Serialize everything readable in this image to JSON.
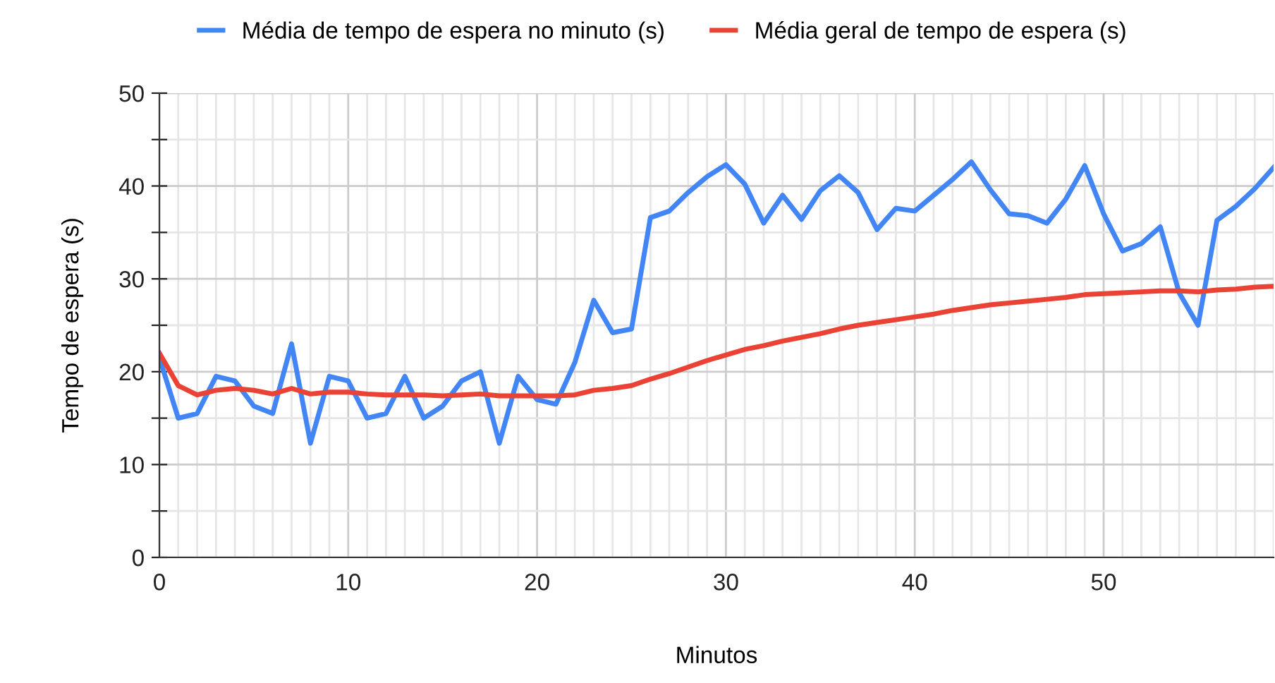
{
  "chart_data": {
    "type": "line",
    "xlabel": "Minutos",
    "ylabel": "Tempo de espera (s)",
    "x": [
      0,
      1,
      2,
      3,
      4,
      5,
      6,
      7,
      8,
      9,
      10,
      11,
      12,
      13,
      14,
      15,
      16,
      17,
      18,
      19,
      20,
      21,
      22,
      23,
      24,
      25,
      26,
      27,
      28,
      29,
      30,
      31,
      32,
      33,
      34,
      35,
      36,
      37,
      38,
      39,
      40,
      41,
      42,
      43,
      44,
      45,
      46,
      47,
      48,
      49,
      50,
      51,
      52,
      53,
      54,
      55,
      56,
      57,
      58,
      59
    ],
    "series": [
      {
        "name": "Média de tempo de espera no minuto (s)",
        "color": "#4285f4",
        "values": [
          21.5,
          15,
          15.5,
          19.5,
          19,
          16.3,
          15.5,
          23,
          12.3,
          19.5,
          19,
          15,
          15.5,
          19.5,
          15,
          16.3,
          19,
          20,
          12.3,
          19.5,
          17,
          16.5,
          21,
          27.7,
          24.2,
          24.6,
          36.6,
          37.3,
          39.3,
          41,
          42.3,
          40.2,
          36,
          39,
          36.4,
          39.5,
          41.1,
          39.3,
          35.3,
          37.6,
          37.3,
          39,
          40.7,
          42.6,
          39.6,
          37,
          36.8,
          36,
          38.6,
          42.2,
          37,
          33,
          33.8,
          35.6,
          28.5,
          25,
          36.3,
          37.8,
          39.7,
          42
        ]
      },
      {
        "name": "Média geral de tempo de espera (s)",
        "color": "#ea4335",
        "values": [
          22,
          18.5,
          17.5,
          18,
          18.2,
          18,
          17.6,
          18.2,
          17.6,
          17.8,
          17.8,
          17.6,
          17.5,
          17.5,
          17.5,
          17.4,
          17.5,
          17.6,
          17.4,
          17.4,
          17.4,
          17.4,
          17.5,
          18,
          18.2,
          18.5,
          19.2,
          19.8,
          20.5,
          21.2,
          21.8,
          22.4,
          22.8,
          23.3,
          23.7,
          24.1,
          24.6,
          25,
          25.3,
          25.6,
          25.9,
          26.2,
          26.6,
          26.9,
          27.2,
          27.4,
          27.6,
          27.8,
          28,
          28.3,
          28.4,
          28.5,
          28.6,
          28.7,
          28.7,
          28.6,
          28.8,
          28.9,
          29.1,
          29.2
        ]
      }
    ],
    "xlim": [
      0,
      59
    ],
    "xticks": [
      0,
      {
        "value": 1,
        "label": null
      },
      {
        "value": 2,
        "label": null
      },
      {
        "value": 3,
        "label": null
      },
      {
        "value": 4,
        "label": null
      },
      {
        "value": 5,
        "label": null
      },
      {
        "value": 6,
        "label": null
      },
      {
        "value": 7,
        "label": null
      },
      {
        "value": 8,
        "label": null
      },
      {
        "value": 9,
        "label": null
      },
      10,
      {
        "value": 11,
        "label": null
      },
      {
        "value": 12,
        "label": null
      },
      {
        "value": 13,
        "label": null
      },
      {
        "value": 14,
        "label": null
      },
      {
        "value": 15,
        "label": null
      },
      {
        "value": 16,
        "label": null
      },
      {
        "value": 17,
        "label": null
      },
      {
        "value": 18,
        "label": null
      },
      {
        "value": 19,
        "label": null
      },
      20,
      {
        "value": 21,
        "label": null
      },
      {
        "value": 22,
        "label": null
      },
      {
        "value": 23,
        "label": null
      },
      {
        "value": 24,
        "label": null
      },
      {
        "value": 25,
        "label": null
      },
      {
        "value": 26,
        "label": null
      },
      {
        "value": 27,
        "label": null
      },
      {
        "value": 28,
        "label": null
      },
      {
        "value": 29,
        "label": null
      },
      30,
      {
        "value": 31,
        "label": null
      },
      {
        "value": 32,
        "label": null
      },
      {
        "value": 33,
        "label": null
      },
      {
        "value": 34,
        "label": null
      },
      {
        "value": 35,
        "label": null
      },
      {
        "value": 36,
        "label": null
      },
      {
        "value": 37,
        "label": null
      },
      {
        "value": 38,
        "label": null
      },
      {
        "value": 39,
        "label": null
      },
      40,
      {
        "value": 41,
        "label": null
      },
      {
        "value": 42,
        "label": null
      },
      {
        "value": 43,
        "label": null
      },
      {
        "value": 44,
        "label": null
      },
      {
        "value": 45,
        "label": null
      },
      {
        "value": 46,
        "label": null
      },
      {
        "value": 47,
        "label": null
      },
      {
        "value": 48,
        "label": null
      },
      {
        "value": 49,
        "label": null
      },
      50,
      {
        "value": 51,
        "label": null
      },
      {
        "value": 52,
        "label": null
      },
      {
        "value": 53,
        "label": null
      },
      {
        "value": 54,
        "label": null
      },
      {
        "value": 55,
        "label": null
      },
      {
        "value": 56,
        "label": null
      },
      {
        "value": 57,
        "label": null
      },
      {
        "value": 58,
        "label": null
      },
      {
        "value": 59,
        "label": null
      }
    ],
    "ylim": [
      0,
      50
    ],
    "yticks": [
      0,
      {
        "value": 5,
        "label": null
      },
      10,
      {
        "value": 15,
        "label": null
      },
      20,
      {
        "value": 25,
        "label": null
      },
      30,
      {
        "value": 35,
        "label": null
      },
      40,
      {
        "value": 45,
        "label": null
      },
      50
    ],
    "grid": true,
    "legend": "top",
    "marker": "none",
    "line_style": "solid"
  }
}
